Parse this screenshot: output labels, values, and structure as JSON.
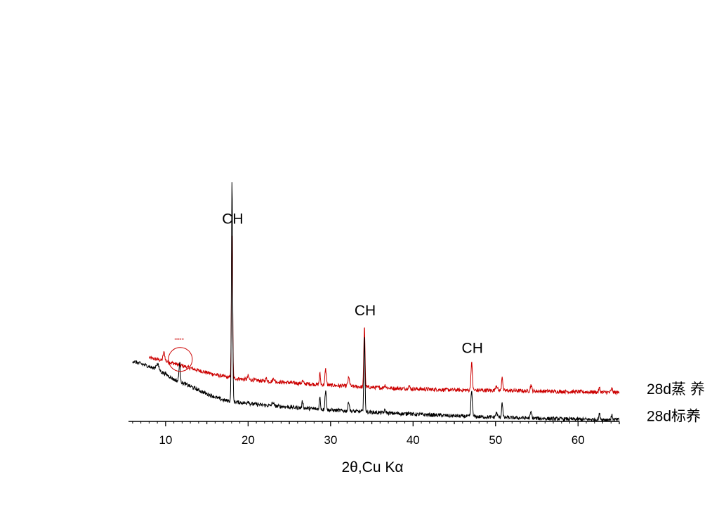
{
  "chart_data": {
    "type": "line",
    "xlabel": "2θ,Cu Kα",
    "ylabel": "",
    "xlim": [
      5.5,
      65
    ],
    "x_ticks": [
      10,
      20,
      30,
      40,
      50,
      60
    ],
    "y_axis_visible": false,
    "grid": false,
    "series": [
      {
        "name": "28d蒸 养",
        "color": "#cc0000",
        "x_start": 8,
        "baseline": [
          [
            8,
            18.5
          ],
          [
            10,
            17.5
          ],
          [
            12,
            16.2
          ],
          [
            14,
            14.8
          ],
          [
            16,
            13.6
          ],
          [
            18,
            12.6
          ],
          [
            22,
            11.7
          ],
          [
            26,
            11.1
          ],
          [
            30,
            10.5
          ],
          [
            34,
            10.0
          ],
          [
            38,
            9.6
          ],
          [
            42,
            9.3
          ],
          [
            46,
            9.1
          ],
          [
            50,
            9.0
          ],
          [
            55,
            8.8
          ],
          [
            60,
            8.6
          ],
          [
            65,
            8.4
          ]
        ],
        "peaks": [
          [
            9.8,
            2.4,
            0.15
          ],
          [
            18.05,
            42.0,
            0.1
          ],
          [
            20,
            1.1,
            0.12
          ],
          [
            22.2,
            0.8,
            0.15
          ],
          [
            23.1,
            1.0,
            0.15
          ],
          [
            26.6,
            0.7,
            0.12
          ],
          [
            28.7,
            3.2,
            0.1
          ],
          [
            29.4,
            4.5,
            0.12
          ],
          [
            32.2,
            2.4,
            0.15
          ],
          [
            34.1,
            18.0,
            0.1
          ],
          [
            36.6,
            0.8,
            0.15
          ],
          [
            39.5,
            0.8,
            0.15
          ],
          [
            47.1,
            8.0,
            0.12
          ],
          [
            50.1,
            1.6,
            0.15
          ],
          [
            50.8,
            4.3,
            0.1
          ],
          [
            54.3,
            1.8,
            0.12
          ],
          [
            62.6,
            1.2,
            0.12
          ],
          [
            64.1,
            1.1,
            0.12
          ]
        ]
      },
      {
        "name": "28d标养",
        "color": "#000000",
        "x_start": 6,
        "baseline": [
          [
            6,
            17.5
          ],
          [
            8,
            16.0
          ],
          [
            10,
            13.8
          ],
          [
            11,
            12.2
          ],
          [
            13,
            10.2
          ],
          [
            15,
            8.0
          ],
          [
            17,
            6.2
          ],
          [
            18,
            5.8
          ],
          [
            20,
            5.2
          ],
          [
            22,
            4.7
          ],
          [
            26,
            4.0
          ],
          [
            30,
            3.3
          ],
          [
            34,
            2.8
          ],
          [
            38,
            2.3
          ],
          [
            42,
            1.9
          ],
          [
            46,
            1.5
          ],
          [
            50,
            1.2
          ],
          [
            55,
            0.9
          ],
          [
            60,
            0.6
          ],
          [
            65,
            0.5
          ]
        ],
        "peaks": [
          [
            9.0,
            1.8,
            0.25
          ],
          [
            11.7,
            5.5,
            0.12
          ],
          [
            18.05,
            64.0,
            0.1
          ],
          [
            20,
            0.8,
            0.12
          ],
          [
            23.0,
            1.0,
            0.15
          ],
          [
            26.6,
            2.0,
            0.1
          ],
          [
            28.7,
            3.5,
            0.1
          ],
          [
            29.4,
            5.5,
            0.12
          ],
          [
            32.2,
            2.8,
            0.12
          ],
          [
            34.1,
            22.0,
            0.1
          ],
          [
            36.6,
            0.7,
            0.15
          ],
          [
            39.5,
            0.6,
            0.15
          ],
          [
            47.1,
            7.5,
            0.12
          ],
          [
            50.1,
            1.3,
            0.15
          ],
          [
            50.8,
            4.5,
            0.1
          ],
          [
            54.3,
            1.8,
            0.12
          ],
          [
            62.6,
            1.6,
            0.12
          ],
          [
            64.1,
            1.2,
            0.12
          ]
        ]
      }
    ],
    "annotations": [
      {
        "text": "CH",
        "x": 18.05,
        "series": 0
      },
      {
        "text": "CH",
        "x": 34.1,
        "series": 0
      },
      {
        "text": "CH",
        "x": 47.1,
        "series": 0
      }
    ],
    "highlight_marker": {
      "shape": "circle",
      "x": 11.7,
      "series": 1,
      "color": "#cc0000"
    }
  }
}
